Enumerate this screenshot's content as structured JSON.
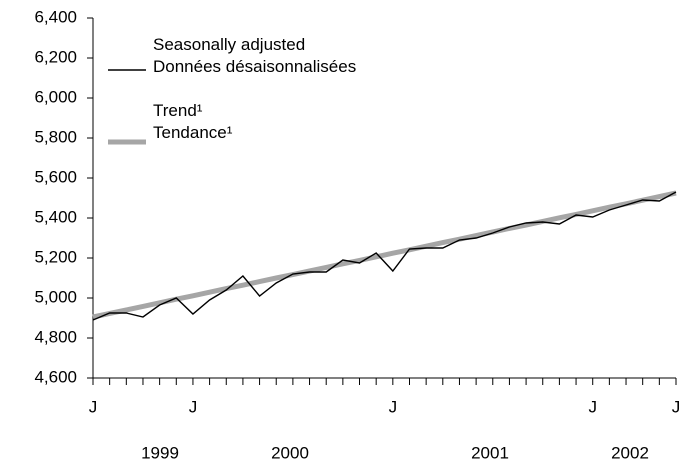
{
  "chart_data": {
    "type": "line",
    "categories": [
      "J",
      null,
      null,
      null,
      null,
      null,
      "J",
      null,
      null,
      null,
      null,
      null,
      null,
      null,
      null,
      null,
      null,
      null,
      "J",
      null,
      null,
      null,
      null,
      null,
      null,
      null,
      null,
      null,
      null,
      null,
      "J",
      null,
      null,
      null,
      null,
      "J"
    ],
    "x_group_labels": [
      "1999",
      "2000",
      "2001",
      "2002"
    ],
    "series": [
      {
        "name": "Seasonally adjusted\nDonnées désaisonnalisées",
        "color": "#000000",
        "values": [
          4890,
          4925,
          4925,
          4905,
          4965,
          5000,
          4920,
          4990,
          5040,
          5110,
          5010,
          5075,
          5120,
          5130,
          5130,
          5190,
          5175,
          5225,
          5135,
          5245,
          5250,
          5250,
          5290,
          5300,
          5325,
          5355,
          5375,
          5380,
          5370,
          5415,
          5405,
          5440,
          5465,
          5490,
          5485,
          5530
        ]
      },
      {
        "name": "Trend¹\nTendance¹",
        "color": "#a6a6a6",
        "values": [
          4905,
          4923,
          4940,
          4958,
          4976,
          4994,
          5011,
          5029,
          5047,
          5064,
          5082,
          5100,
          5117,
          5135,
          5153,
          5171,
          5188,
          5206,
          5224,
          5241,
          5259,
          5277,
          5294,
          5312,
          5330,
          5348,
          5365,
          5383,
          5401,
          5418,
          5436,
          5454,
          5471,
          5489,
          5507,
          5525
        ]
      }
    ],
    "ylim": [
      4600,
      6400
    ],
    "yticks": [
      {
        "value": 4600,
        "label": "4,600"
      },
      {
        "value": 4800,
        "label": "4,800"
      },
      {
        "value": 5000,
        "label": "5,000"
      },
      {
        "value": 5200,
        "label": "5,200"
      },
      {
        "value": 5400,
        "label": "5,400"
      },
      {
        "value": 5600,
        "label": "5,600"
      },
      {
        "value": 5800,
        "label": "5,800"
      },
      {
        "value": 6000,
        "label": "6,000"
      },
      {
        "value": 6200,
        "label": "6,200"
      },
      {
        "value": 6400,
        "label": "6,400"
      }
    ],
    "grid": false
  }
}
